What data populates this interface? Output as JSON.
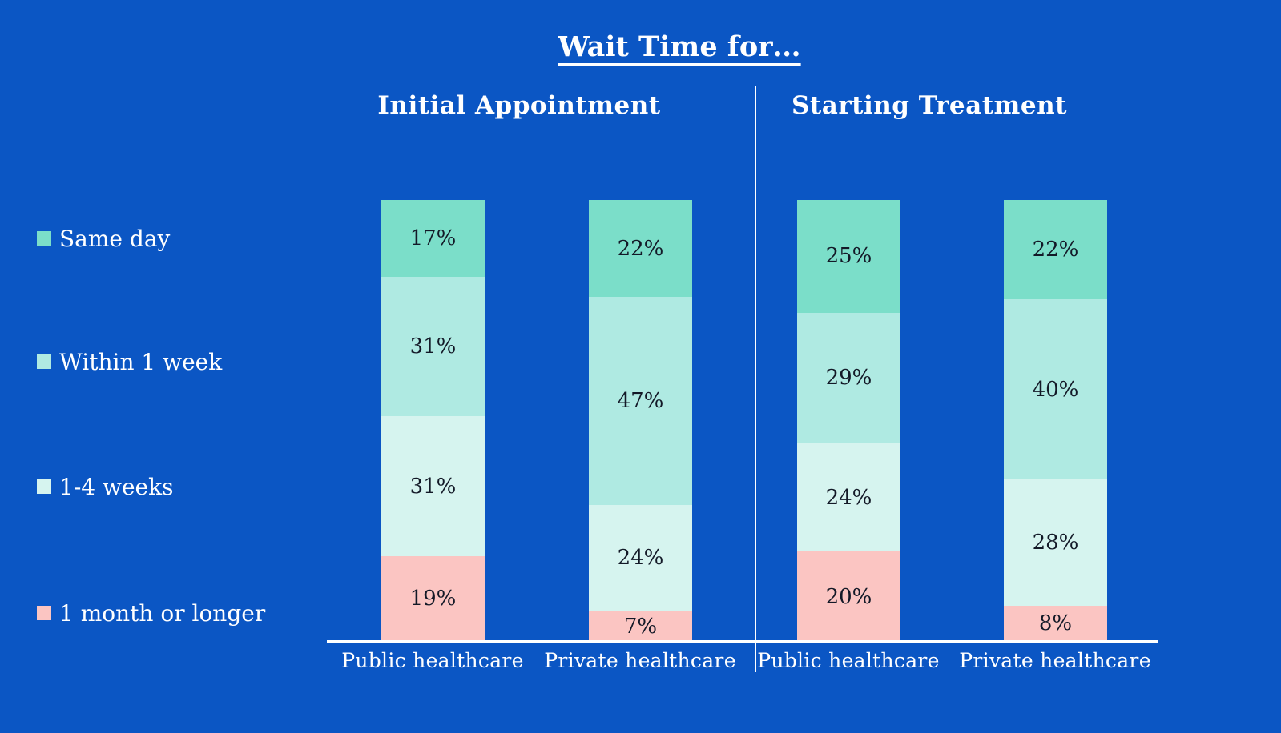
{
  "colors": {
    "background": "#0b56c4",
    "text_light": "#ffffff",
    "text_dark": "#131927",
    "axis_line": "#ffffff",
    "same_day": "#7bdec9",
    "within_1_week": "#afeae2",
    "one_to_four_weeks": "#d6f4ef",
    "one_month_or_longer": "#fbc5c2"
  },
  "chart_data": {
    "type": "bar",
    "variant": "stacked-percentage",
    "title": "Wait Time for…",
    "legend_position": "left",
    "value_suffix": "%",
    "segments": [
      "Same day",
      "Within 1 week",
      "1-4 weeks",
      "1 month or longer"
    ],
    "segment_colors": [
      "#7bdec9",
      "#afeae2",
      "#d6f4ef",
      "#fbc5c2"
    ],
    "panels": [
      {
        "title": "Initial Appointment",
        "bars": [
          {
            "category": "Public healthcare",
            "values": [
              17,
              31,
              31,
              19
            ]
          },
          {
            "category": "Private healthcare",
            "values": [
              22,
              47,
              24,
              7
            ]
          }
        ]
      },
      {
        "title": "Starting Treatment",
        "bars": [
          {
            "category": "Public healthcare",
            "values": [
              25,
              29,
              24,
              20
            ]
          },
          {
            "category": "Private healthcare",
            "values": [
              22,
              40,
              28,
              8
            ]
          }
        ]
      }
    ]
  }
}
